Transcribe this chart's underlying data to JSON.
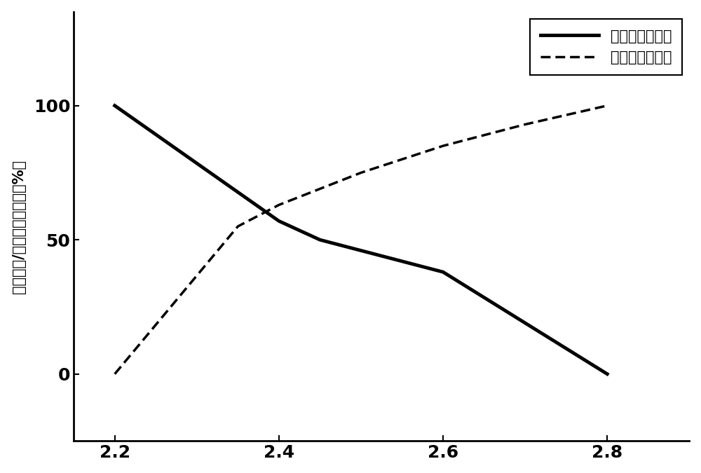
{
  "solid_x": [
    2.2,
    2.4,
    2.45,
    2.6,
    2.8
  ],
  "solid_y": [
    100,
    57,
    50,
    38,
    0
  ],
  "dashed_x": [
    2.2,
    2.35,
    2.4,
    2.5,
    2.6,
    2.7,
    2.8
  ],
  "dashed_y": [
    0,
    55,
    63,
    75,
    85,
    93,
    100
  ],
  "ylabel": "活件密度/强度变化百分数（%）",
  "legend_solid": "密度变化百分数",
  "legend_dashed": "强度变化百分数",
  "xticks": [
    2.2,
    2.4,
    2.6,
    2.8
  ],
  "yticks": [
    0,
    50,
    100
  ],
  "xlim": [
    2.15,
    2.9
  ],
  "ylim": [
    -25,
    135
  ],
  "line_color": "#000000",
  "background_color": "#ffffff",
  "solid_linewidth": 3.5,
  "dashed_linewidth": 2.5
}
